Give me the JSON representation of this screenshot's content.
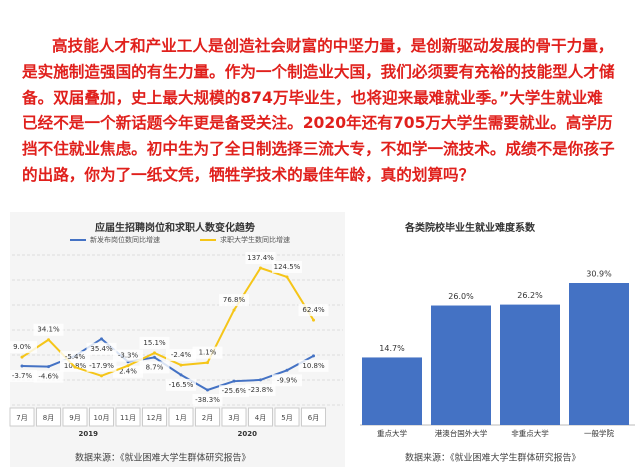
{
  "document": {
    "paragraph_lines": [
      "高技能人才和产业工人是创造社会财富的中坚力量，是创新驱动发展的骨干力量，",
      "是实施制造强国的有生力量。作为一个制造业大国，我们必须要有充裕的技能型人才储",
      "备。双届叠加，史上最大规模的874万毕业生，也将迎来最难就业季。”大学生就业难",
      "已经不是一个新话题今年更是备受关注。2020年还有705万大学生需要就业。高学历",
      "挡不住就业焦虑。初中生为了全日制选择三流大专，不如学一流技术。成绩不是你孩子",
      "的出路，你为了一纸文凭，牺牲学技术的最佳年龄，真的划算吗？"
    ]
  },
  "chart_data": [
    {
      "type": "line",
      "title": "应届生招聘岗位和求职人数变化趋势",
      "categories": [
        "7月",
        "8月",
        "9月",
        "10月",
        "11月",
        "12月",
        "1月",
        "2月",
        "3月",
        "4月",
        "5月",
        "6月"
      ],
      "year_labels": [
        "2019",
        "2020"
      ],
      "series": [
        {
          "name": "新发布岗位数同比增速",
          "color": "#4472c4",
          "values": [
            -3.7,
            -4.6,
            10.8,
            35.4,
            2.4,
            8.7,
            -16.5,
            -38.3,
            -25.6,
            -23.8,
            -9.9,
            10.8
          ],
          "value_labels": [
            "-3.7%",
            "-4.6%",
            "10.8%",
            "35.4%",
            "2.4%",
            "8.7%",
            "-16.5%",
            "-38.3%",
            "-25.6%",
            "-23.8%",
            "-9.9%",
            "10.8%"
          ]
        },
        {
          "name": "求职大学生数同比增速",
          "color": "#f5c518",
          "values": [
            9.0,
            34.1,
            -5.4,
            -17.9,
            -3.3,
            15.1,
            -2.4,
            1.1,
            76.8,
            137.4,
            124.5,
            62.4
          ],
          "value_labels": [
            "9.0%",
            "34.1%",
            "-5.4%",
            "-17.9%",
            "-3.3%",
            "15.1%",
            "-2.4%",
            "1.1%",
            "76.8%",
            "137.4%",
            "124.5%",
            "62.4%"
          ]
        }
      ],
      "source": "数据来源：《就业困难大学生群体研究报告》"
    },
    {
      "type": "bar",
      "title": "各类院校毕业生就业难度系数",
      "categories": [
        "重点大学",
        "港澳台国外大学",
        "非重点大学",
        "一般学院"
      ],
      "values": [
        14.7,
        26.0,
        26.2,
        30.9
      ],
      "value_labels": [
        "14.7%",
        "26.0%",
        "26.2%",
        "30.9%"
      ],
      "color": "#4472c4",
      "source": "数据来源：《就业困难大学生群体研究报告》"
    }
  ]
}
